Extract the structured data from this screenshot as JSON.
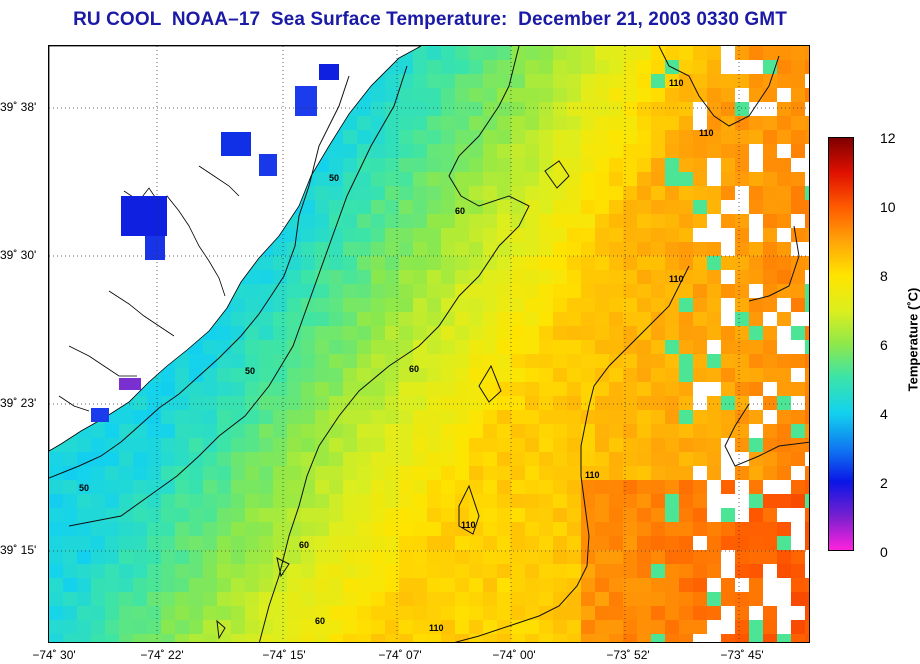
{
  "title": "RU COOL  NOAA–17  Sea Surface Temperature:  December 21, 2003 0330 GMT",
  "y_labels": [
    "39˚ 38'",
    "39˚ 30'",
    "39˚ 23'",
    "39˚ 15'"
  ],
  "x_labels": [
    "−74˚ 30'",
    "−74˚ 22'",
    "−74˚ 15'",
    "−74˚ 07'",
    "−74˚ 00'",
    "−73˚ 52'",
    "−73˚ 45'"
  ],
  "colorbar": {
    "label": "Temperature (˚C)",
    "ticks": [
      "12",
      "10",
      "8",
      "6",
      "4",
      "2",
      "0"
    ],
    "min": 0,
    "max": 12
  },
  "contour_labels": [
    "50",
    "50",
    "50",
    "60",
    "60",
    "60",
    "60",
    "110",
    "110",
    "110",
    "110",
    "110",
    "110"
  ]
}
